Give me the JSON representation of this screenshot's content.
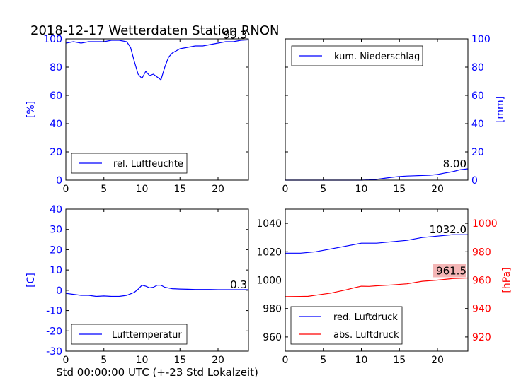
{
  "title": "2018-12-17 Wetterdaten Station RNON",
  "xlabel": "Std 00:00:00 UTC (+-23 Std Lokalzeit)",
  "colors": {
    "blue": "#0000ff",
    "red": "#ff0000",
    "black": "#000000",
    "last_box_red": "#f4b6b6"
  },
  "chart_data": [
    {
      "type": "line",
      "panel": "top-left",
      "ylabel": "[%]",
      "ylim": [
        0,
        100
      ],
      "yticks": [
        0,
        20,
        40,
        60,
        80,
        100
      ],
      "xlim": [
        0,
        24
      ],
      "xticks": [
        0,
        5,
        10,
        15,
        20
      ],
      "legend": "lower-left",
      "last_value_label": "99.3",
      "series": [
        {
          "name": "rel. Luftfeuchte",
          "color": "#0000ff",
          "x": [
            0,
            1,
            2,
            3,
            4,
            5,
            6,
            7,
            8,
            8.5,
            9,
            9.5,
            10,
            10.5,
            11,
            11.5,
            12,
            12.5,
            13,
            13.5,
            14,
            15,
            16,
            17,
            18,
            19,
            20,
            21,
            22,
            23,
            24
          ],
          "y": [
            97,
            98,
            97,
            98,
            98,
            98,
            99,
            99,
            98,
            94,
            84,
            75,
            72,
            77,
            74,
            75,
            73,
            71,
            80,
            87,
            90,
            93,
            94,
            95,
            95,
            96,
            97,
            98,
            98,
            99,
            99.3
          ]
        }
      ]
    },
    {
      "type": "line",
      "panel": "top-right",
      "ylabel": "[mm]",
      "ylim": [
        0,
        100
      ],
      "yticks": [
        0,
        20,
        40,
        60,
        80,
        100
      ],
      "xlim": [
        0,
        24
      ],
      "xticks": [
        0,
        5,
        10,
        15,
        20
      ],
      "legend": "upper-left",
      "last_value_label": "8.00",
      "series": [
        {
          "name": "kum. Niederschlag",
          "color": "#0000ff",
          "x": [
            0,
            5,
            10,
            11,
            12,
            13,
            14,
            15,
            16,
            17,
            18,
            19,
            20,
            21,
            22,
            23,
            24
          ],
          "y": [
            0,
            0,
            0,
            0.2,
            0.6,
            1.3,
            2.0,
            2.6,
            2.9,
            3.1,
            3.3,
            3.5,
            4.0,
            5.1,
            6.0,
            7.4,
            8.0
          ]
        }
      ]
    },
    {
      "type": "line",
      "panel": "bottom-left",
      "ylabel": "[C]",
      "ylim": [
        -30,
        40
      ],
      "yticks": [
        -30,
        -20,
        -10,
        0,
        10,
        20,
        30,
        40
      ],
      "xlim": [
        0,
        24
      ],
      "xticks": [
        0,
        5,
        10,
        15,
        20
      ],
      "legend": "lower-left",
      "last_value_label": "0.3",
      "series": [
        {
          "name": "Lufttemperatur",
          "color": "#0000ff",
          "x": [
            0,
            1,
            2,
            3,
            4,
            5,
            6,
            7,
            8,
            9,
            9.5,
            10,
            10.5,
            11,
            11.5,
            12,
            12.5,
            13,
            14,
            15,
            16,
            17,
            18,
            19,
            20,
            21,
            22,
            23,
            24
          ],
          "y": [
            -1.5,
            -2,
            -2.5,
            -2.5,
            -3,
            -2.8,
            -3,
            -3,
            -2.5,
            -1,
            0.5,
            2.5,
            2.0,
            1.2,
            1.5,
            2.5,
            2.5,
            1.5,
            0.8,
            0.6,
            0.5,
            0.4,
            0.4,
            0.4,
            0.3,
            0.3,
            0.3,
            0.3,
            0.3
          ]
        }
      ]
    },
    {
      "type": "line",
      "panel": "bottom-right",
      "ylabel": "",
      "ylabel_right": "[hPa]",
      "ylim": [
        950,
        1050
      ],
      "yticks": [
        960,
        980,
        1000,
        1020,
        1040
      ],
      "ylim_right": [
        910,
        1010
      ],
      "yticks_right": [
        920,
        940,
        960,
        980,
        1000
      ],
      "xlim": [
        0,
        24
      ],
      "xticks": [
        0,
        5,
        10,
        15,
        20
      ],
      "legend": "lower-left",
      "last_value_label": "1032.0",
      "last_value_label_2": "961.5",
      "series": [
        {
          "name": "red. Luftdruck",
          "color": "#0000ff",
          "axis": "left",
          "x": [
            0,
            2,
            4,
            6,
            8,
            10,
            12,
            14,
            16,
            18,
            20,
            22,
            24
          ],
          "y": [
            1019,
            1019,
            1020,
            1022,
            1024,
            1026,
            1026,
            1027,
            1028,
            1030,
            1031,
            1032,
            1032
          ]
        },
        {
          "name": "abs. Luftdruck",
          "color": "#ff0000",
          "axis": "right",
          "x": [
            0,
            2,
            3,
            4,
            6,
            8,
            9,
            10,
            11,
            12,
            14,
            16,
            18,
            20,
            22,
            24
          ],
          "y": [
            948.4,
            948.5,
            948.6,
            949.4,
            950.9,
            953.2,
            954.6,
            955.7,
            955.6,
            956.0,
            956.6,
            957.4,
            959.2,
            960.0,
            961.1,
            961.5
          ]
        }
      ]
    }
  ]
}
